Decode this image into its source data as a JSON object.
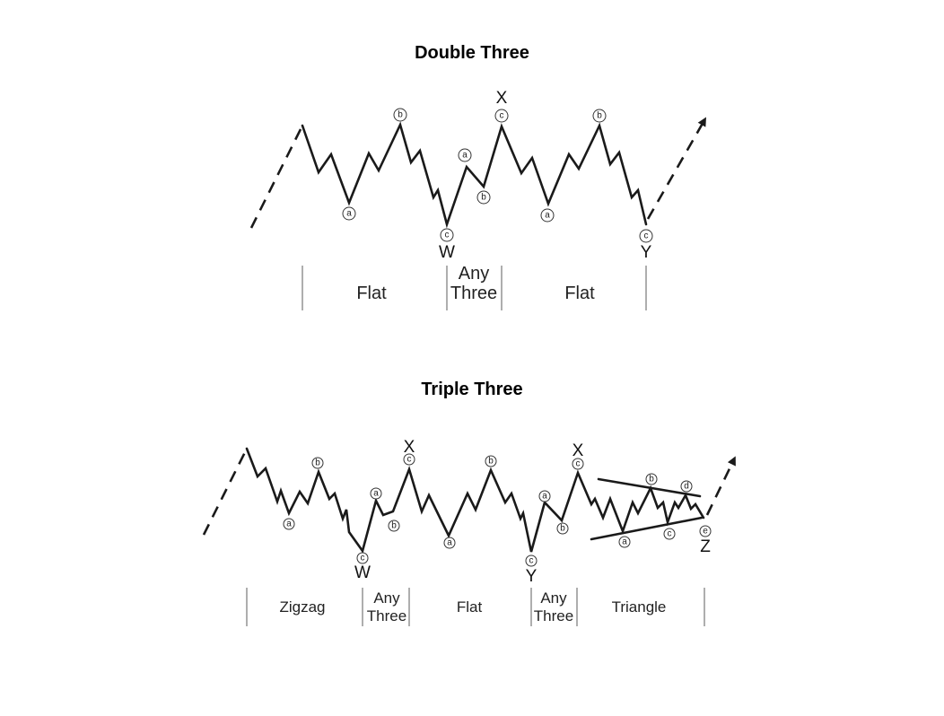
{
  "double_three": {
    "title": "Double Three",
    "wave_labels": {
      "a1": "a",
      "b1": "b",
      "c1": "c",
      "xa": "a",
      "xb": "b",
      "xc": "c",
      "a2": "a",
      "b2": "b",
      "c2": "c"
    },
    "big_labels": {
      "w": "W",
      "x": "X",
      "y": "Y"
    },
    "segments": {
      "flat1": "Flat",
      "any_three": [
        "Any",
        "Three"
      ],
      "flat2": "Flat"
    }
  },
  "triple_three": {
    "title": "Triple Three",
    "wave_labels": {
      "za": "a",
      "zb": "b",
      "zc": "c",
      "x1a": "a",
      "x1b": "b",
      "x1c": "c",
      "fa": "a",
      "fb": "b",
      "fc": "c",
      "x2a": "a",
      "x2b": "b",
      "x2c": "c",
      "ta": "a",
      "tb": "b",
      "tc": "c",
      "td": "d",
      "te": "e"
    },
    "big_labels": {
      "w": "W",
      "x1": "X",
      "y": "Y",
      "x2": "X",
      "z": "Z"
    },
    "segments": {
      "zigzag": "Zigzag",
      "any_three1": [
        "Any",
        "Three"
      ],
      "flat": "Flat",
      "any_three2": [
        "Any",
        "Three"
      ],
      "triangle": "Triangle"
    }
  }
}
